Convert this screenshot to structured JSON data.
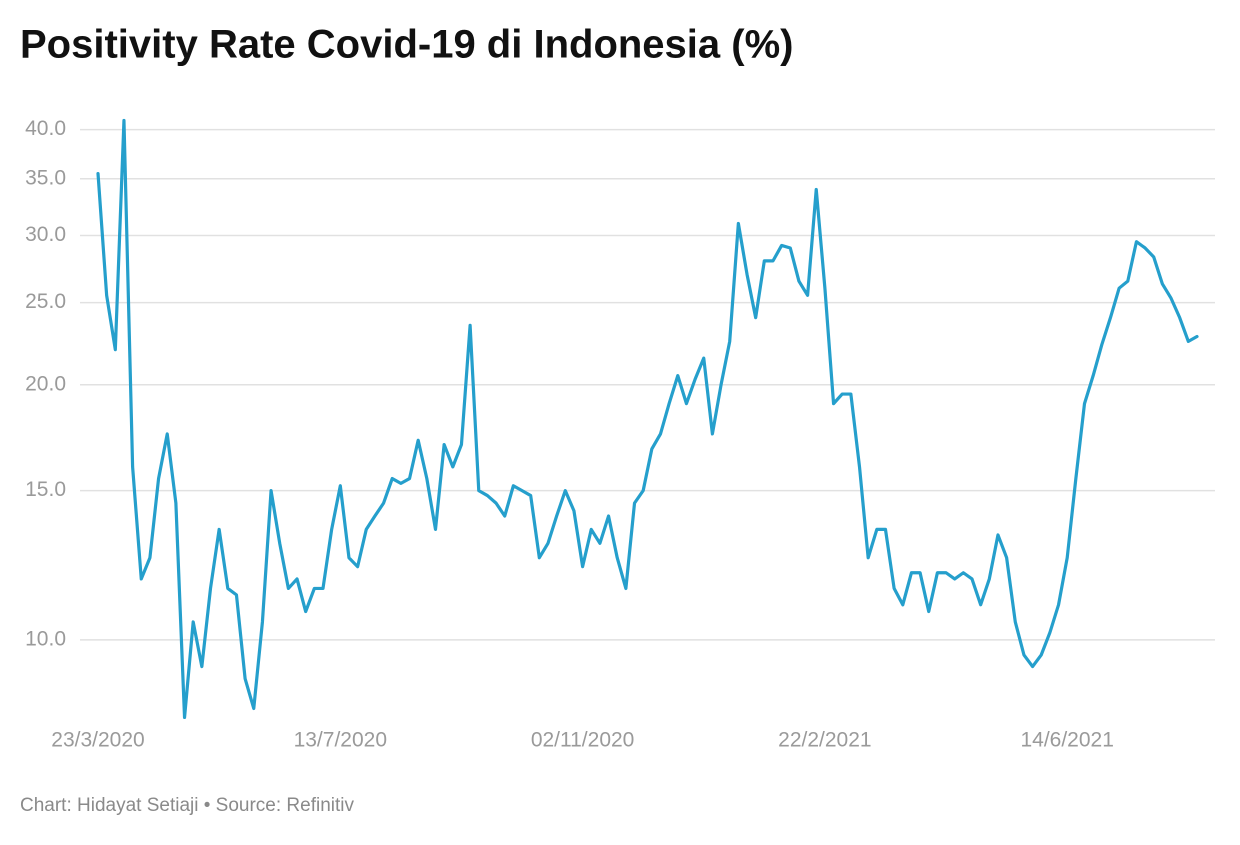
{
  "chart_data": {
    "type": "line",
    "title": "Positivity Rate Covid-19 di Indonesia (%)",
    "footer": "Chart: Hidayat Setiaji • Source: Refinitiv",
    "log_scale": true,
    "grid": true,
    "x": [
      "23/3/2020",
      "27/3/2020",
      "31/3/2020",
      "4/4/2020",
      "8/4/2020",
      "12/4/2020",
      "16/4/2020",
      "20/4/2020",
      "24/4/2020",
      "28/4/2020",
      "2/5/2020",
      "6/5/2020",
      "10/5/2020",
      "14/5/2020",
      "18/5/2020",
      "22/5/2020",
      "26/5/2020",
      "30/5/2020",
      "3/6/2020",
      "7/6/2020",
      "11/6/2020",
      "15/6/2020",
      "19/6/2020",
      "23/6/2020",
      "27/6/2020",
      "1/7/2020",
      "5/7/2020",
      "9/7/2020",
      "13/7/2020",
      "17/7/2020",
      "21/7/2020",
      "25/7/2020",
      "29/7/2020",
      "2/8/2020",
      "6/8/2020",
      "10/8/2020",
      "14/8/2020",
      "18/8/2020",
      "22/8/2020",
      "26/8/2020",
      "30/8/2020",
      "3/9/2020",
      "7/9/2020",
      "11/9/2020",
      "15/9/2020",
      "19/9/2020",
      "23/9/2020",
      "27/9/2020",
      "1/10/2020",
      "5/10/2020",
      "9/10/2020",
      "13/10/2020",
      "17/10/2020",
      "21/10/2020",
      "25/10/2020",
      "29/10/2020",
      "2/11/2020",
      "6/11/2020",
      "10/11/2020",
      "14/11/2020",
      "18/11/2020",
      "22/11/2020",
      "26/11/2020",
      "30/11/2020",
      "4/12/2020",
      "8/12/2020",
      "12/12/2020",
      "16/12/2020",
      "20/12/2020",
      "24/12/2020",
      "28/12/2020",
      "1/1/2021",
      "5/1/2021",
      "9/1/2021",
      "13/1/2021",
      "17/1/2021",
      "21/1/2021",
      "25/1/2021",
      "29/1/2021",
      "2/2/2021",
      "6/2/2021",
      "10/2/2021",
      "14/2/2021",
      "18/2/2021",
      "22/2/2021",
      "26/2/2021",
      "2/3/2021",
      "6/3/2021",
      "10/3/2021",
      "14/3/2021",
      "18/3/2021",
      "22/3/2021",
      "26/3/2021",
      "30/3/2021",
      "3/4/2021",
      "7/4/2021",
      "11/4/2021",
      "15/4/2021",
      "19/4/2021",
      "23/4/2021",
      "27/4/2021",
      "1/5/2021",
      "5/5/2021",
      "9/5/2021",
      "13/5/2021",
      "17/5/2021",
      "21/5/2021",
      "25/5/2021",
      "29/5/2021",
      "2/6/2021",
      "6/6/2021",
      "10/6/2021",
      "14/6/2021",
      "18/6/2021",
      "22/6/2021",
      "26/6/2021",
      "30/6/2021",
      "4/7/2021",
      "8/7/2021",
      "12/7/2021",
      "16/7/2021",
      "20/7/2021",
      "24/7/2021",
      "28/7/2021",
      "1/8/2021",
      "5/8/2021",
      "9/8/2021",
      "13/8/2021"
    ],
    "series": [
      {
        "name": "Positivity Rate",
        "color": "#259fcc",
        "values": [
          35.5,
          25.5,
          22,
          41,
          16,
          11.8,
          12.5,
          15.5,
          17.5,
          14.5,
          8.1,
          10.5,
          9.3,
          11.5,
          13.5,
          11.5,
          11.3,
          9.0,
          8.3,
          10.5,
          15.0,
          13,
          11.5,
          11.8,
          10.8,
          11.5,
          11.5,
          13.5,
          15.2,
          12.5,
          12.2,
          13.5,
          14,
          14.5,
          15.5,
          15.3,
          15.5,
          17.2,
          15.5,
          13.5,
          17,
          16,
          17,
          23.5,
          15,
          14.8,
          14.5,
          14,
          15.2,
          15,
          14.8,
          12.5,
          13,
          14,
          15,
          14.2,
          12.2,
          13.5,
          13,
          14,
          12.5,
          11.5,
          14.5,
          15,
          16.8,
          17.5,
          19,
          20.5,
          19,
          20.3,
          21.5,
          17.5,
          20,
          22.5,
          31,
          27,
          24,
          28,
          28,
          29.2,
          29,
          26.5,
          25.5,
          34,
          26,
          19,
          19.5,
          19.5,
          16,
          12.5,
          13.5,
          13.5,
          11.5,
          11,
          12,
          12,
          10.8,
          12,
          12,
          11.8,
          12,
          11.8,
          11,
          11.8,
          13.3,
          12.5,
          10.5,
          9.6,
          9.3,
          9.6,
          10.2,
          11,
          12.5,
          15.5,
          19,
          20.5,
          22.3,
          24,
          26,
          26.5,
          29.5,
          29,
          28.3,
          26.3,
          25.3,
          24,
          22.5,
          22.8
        ]
      }
    ],
    "xticks": [
      "23/3/2020",
      "13/7/2020",
      "02/11/2020",
      "22/2/2021",
      "14/6/2021"
    ],
    "ylim": [
      8,
      43
    ],
    "yticks": [
      {
        "value": 10,
        "label": "10.0"
      },
      {
        "value": 15,
        "label": "15.0"
      },
      {
        "value": 20,
        "label": "20.0"
      },
      {
        "value": 25,
        "label": "25.0"
      },
      {
        "value": 30,
        "label": "30.0"
      },
      {
        "value": 35,
        "label": "35.0"
      },
      {
        "value": 40,
        "label": "40.0"
      }
    ]
  }
}
